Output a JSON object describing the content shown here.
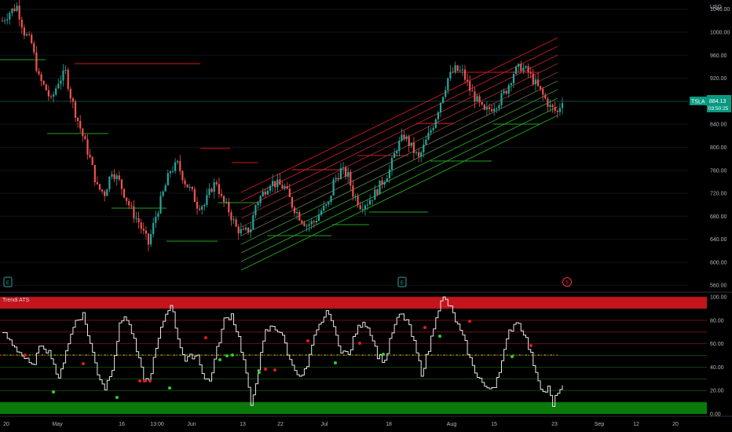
{
  "price_panel": {
    "currency": "USD",
    "ticker": "TSLA",
    "last_price": "884.13",
    "countdown": "03:50:25",
    "y_ticks": [
      "1040.00",
      "1000.00",
      "960.00",
      "920.00",
      "880.00",
      "840.00",
      "800.00",
      "760.00",
      "720.00",
      "680.00",
      "640.00",
      "600.00",
      "560.00"
    ],
    "y_range": [
      548,
      1056
    ],
    "accent_color": "#089981",
    "events": [
      {
        "icon": "earnings-icon",
        "glyph": "E",
        "color": "#26a69a"
      },
      {
        "icon": "earnings-icon",
        "glyph": "E",
        "color": "#26a69a"
      },
      {
        "icon": "dividend-icon",
        "glyph": "S",
        "color": "#f23645"
      }
    ]
  },
  "indicator_panel": {
    "title": "Trendi ATS",
    "y_ticks": [
      "100.00",
      "80.00",
      "60.00",
      "40.00",
      "20.00",
      "0.00"
    ],
    "y_range": [
      0,
      100
    ],
    "upper_zone_color": "#c4151c",
    "lower_zone_color": "#0a7a0a"
  },
  "x_axis": {
    "labels": [
      "20",
      "May",
      "16",
      "13:00",
      "Jun",
      "13",
      "22",
      "Jul",
      "18",
      "Aug",
      "15",
      "23",
      "Sep",
      "12",
      "20"
    ]
  },
  "chart_data": {
    "type": "candlestick",
    "symbol": "TSLA",
    "currency": "USD",
    "ylim": [
      548,
      1056
    ],
    "price_path": [
      [
        0,
        1020
      ],
      [
        3,
        1035
      ],
      [
        6,
        1045
      ],
      [
        9,
        1000
      ],
      [
        12,
        980
      ],
      [
        15,
        920
      ],
      [
        18,
        900
      ],
      [
        20,
        880
      ],
      [
        23,
        915
      ],
      [
        26,
        930
      ],
      [
        28,
        890
      ],
      [
        30,
        860
      ],
      [
        33,
        820
      ],
      [
        36,
        780
      ],
      [
        39,
        730
      ],
      [
        42,
        720
      ],
      [
        45,
        760
      ],
      [
        48,
        740
      ],
      [
        50,
        720
      ],
      [
        53,
        690
      ],
      [
        56,
        670
      ],
      [
        58,
        650
      ],
      [
        60,
        632
      ],
      [
        63,
        680
      ],
      [
        66,
        720
      ],
      [
        69,
        760
      ],
      [
        72,
        770
      ],
      [
        75,
        740
      ],
      [
        78,
        720
      ],
      [
        80,
        700
      ],
      [
        83,
        700
      ],
      [
        86,
        730
      ],
      [
        88,
        740
      ],
      [
        90,
        710
      ],
      [
        93,
        690
      ],
      [
        96,
        660
      ],
      [
        99,
        650
      ],
      [
        102,
        660
      ],
      [
        104,
        700
      ],
      [
        107,
        720
      ],
      [
        110,
        740
      ],
      [
        113,
        735
      ],
      [
        116,
        730
      ],
      [
        119,
        700
      ],
      [
        122,
        680
      ],
      [
        125,
        665
      ],
      [
        128,
        670
      ],
      [
        131,
        690
      ],
      [
        134,
        700
      ],
      [
        136,
        740
      ],
      [
        139,
        760
      ],
      [
        142,
        750
      ],
      [
        144,
        720
      ],
      [
        147,
        700
      ],
      [
        150,
        705
      ],
      [
        153,
        720
      ],
      [
        156,
        740
      ],
      [
        159,
        760
      ],
      [
        162,
        800
      ],
      [
        165,
        820
      ],
      [
        168,
        800
      ],
      [
        171,
        780
      ],
      [
        174,
        810
      ],
      [
        177,
        840
      ],
      [
        180,
        880
      ],
      [
        183,
        920
      ],
      [
        186,
        935
      ],
      [
        189,
        930
      ],
      [
        192,
        900
      ],
      [
        195,
        880
      ],
      [
        198,
        860
      ],
      [
        201,
        870
      ],
      [
        204,
        880
      ],
      [
        207,
        900
      ],
      [
        210,
        930
      ],
      [
        213,
        940
      ],
      [
        216,
        930
      ],
      [
        219,
        910
      ],
      [
        222,
        890
      ],
      [
        225,
        870
      ],
      [
        228,
        860
      ],
      [
        230,
        884
      ]
    ],
    "indicator": {
      "name": "Trendi ATS",
      "ylim": [
        0,
        100
      ],
      "zones": {
        "upper": [
          90,
          100
        ],
        "lower": [
          0,
          10
        ]
      },
      "levels": [
        100,
        90,
        80,
        70,
        60,
        50,
        40,
        30,
        20,
        10
      ],
      "osc_path": [
        [
          0,
          70
        ],
        [
          4,
          60
        ],
        [
          8,
          50
        ],
        [
          12,
          40
        ],
        [
          16,
          60
        ],
        [
          20,
          50
        ],
        [
          23,
          28
        ],
        [
          26,
          55
        ],
        [
          30,
          80
        ],
        [
          33,
          85
        ],
        [
          36,
          60
        ],
        [
          39,
          35
        ],
        [
          42,
          22
        ],
        [
          45,
          40
        ],
        [
          48,
          75
        ],
        [
          50,
          85
        ],
        [
          53,
          70
        ],
        [
          56,
          45
        ],
        [
          58,
          30
        ],
        [
          60,
          28
        ],
        [
          63,
          55
        ],
        [
          66,
          80
        ],
        [
          69,
          95
        ],
        [
          72,
          65
        ],
        [
          75,
          45
        ],
        [
          78,
          50
        ],
        [
          80,
          50
        ],
        [
          83,
          30
        ],
        [
          85,
          28
        ],
        [
          88,
          55
        ],
        [
          91,
          80
        ],
        [
          94,
          85
        ],
        [
          97,
          65
        ],
        [
          100,
          35
        ],
        [
          102,
          5
        ],
        [
          105,
          40
        ],
        [
          108,
          70
        ],
        [
          111,
          75
        ],
        [
          114,
          70
        ],
        [
          116,
          60
        ],
        [
          118,
          45
        ],
        [
          120,
          40
        ],
        [
          122,
          30
        ],
        [
          125,
          40
        ],
        [
          128,
          65
        ],
        [
          131,
          80
        ],
        [
          134,
          88
        ],
        [
          136,
          72
        ],
        [
          139,
          55
        ],
        [
          142,
          50
        ],
        [
          145,
          70
        ],
        [
          148,
          80
        ],
        [
          151,
          70
        ],
        [
          154,
          50
        ],
        [
          157,
          45
        ],
        [
          160,
          70
        ],
        [
          163,
          85
        ],
        [
          166,
          80
        ],
        [
          169,
          60
        ],
        [
          172,
          35
        ],
        [
          175,
          55
        ],
        [
          178,
          85
        ],
        [
          181,
          100
        ],
        [
          184,
          90
        ],
        [
          187,
          75
        ],
        [
          190,
          60
        ],
        [
          193,
          40
        ],
        [
          196,
          30
        ],
        [
          199,
          20
        ],
        [
          202,
          25
        ],
        [
          205,
          45
        ],
        [
          208,
          70
        ],
        [
          211,
          80
        ],
        [
          214,
          70
        ],
        [
          217,
          50
        ],
        [
          220,
          30
        ],
        [
          222,
          18
        ],
        [
          224,
          22
        ],
        [
          226,
          6
        ],
        [
          228,
          20
        ],
        [
          230,
          22
        ]
      ]
    }
  }
}
